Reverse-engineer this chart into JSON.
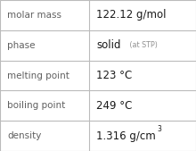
{
  "rows": [
    {
      "label": "molar mass",
      "value": "122.12 g/mol",
      "type": "plain"
    },
    {
      "label": "phase",
      "value": "solid",
      "value_suffix": " (at STP)",
      "type": "suffix"
    },
    {
      "label": "melting point",
      "value": "123 °C",
      "type": "plain"
    },
    {
      "label": "boiling point",
      "value": "249 °C",
      "type": "plain"
    },
    {
      "label": "density",
      "value": "1.316 g/cm",
      "superscript": "3",
      "type": "super"
    }
  ],
  "col_split": 0.455,
  "background_color": "#ffffff",
  "border_color": "#bbbbbb",
  "label_color": "#606060",
  "value_color": "#1a1a1a",
  "suffix_color": "#909090",
  "label_fontsize": 7.5,
  "value_fontsize": 8.5,
  "suffix_fontsize": 5.8,
  "super_fontsize": 5.5
}
